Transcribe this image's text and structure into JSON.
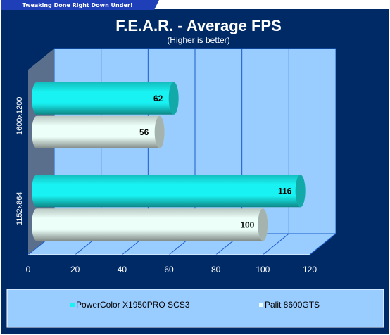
{
  "banner": "Tweaking Done Right Down Under!",
  "colors": {
    "frame_bg": "#002a66",
    "plot_bg": "#99ccff",
    "grid": "#1a5cc8",
    "floor": "#5a6f8c",
    "tab": "#1f3fb8",
    "legend_bg": "#99ccff"
  },
  "chart_data": {
    "type": "bar",
    "orientation": "horizontal",
    "title": "F.E.A.R. - Average FPS",
    "subtitle": "(Higher is better)",
    "categories": [
      "1600x1200",
      "1152x864"
    ],
    "series": [
      {
        "name": "PowerColor X1950PRO SCS3",
        "color": "#19f2f2",
        "values": [
          62,
          116
        ]
      },
      {
        "name": "Palit 8600GTS",
        "color": "#ecfff8",
        "values": [
          56,
          100
        ]
      }
    ],
    "xlim": [
      0,
      120
    ],
    "xticks": [
      0,
      20,
      40,
      60,
      80,
      100,
      120
    ],
    "grid": true,
    "legend_position": "bottom"
  }
}
